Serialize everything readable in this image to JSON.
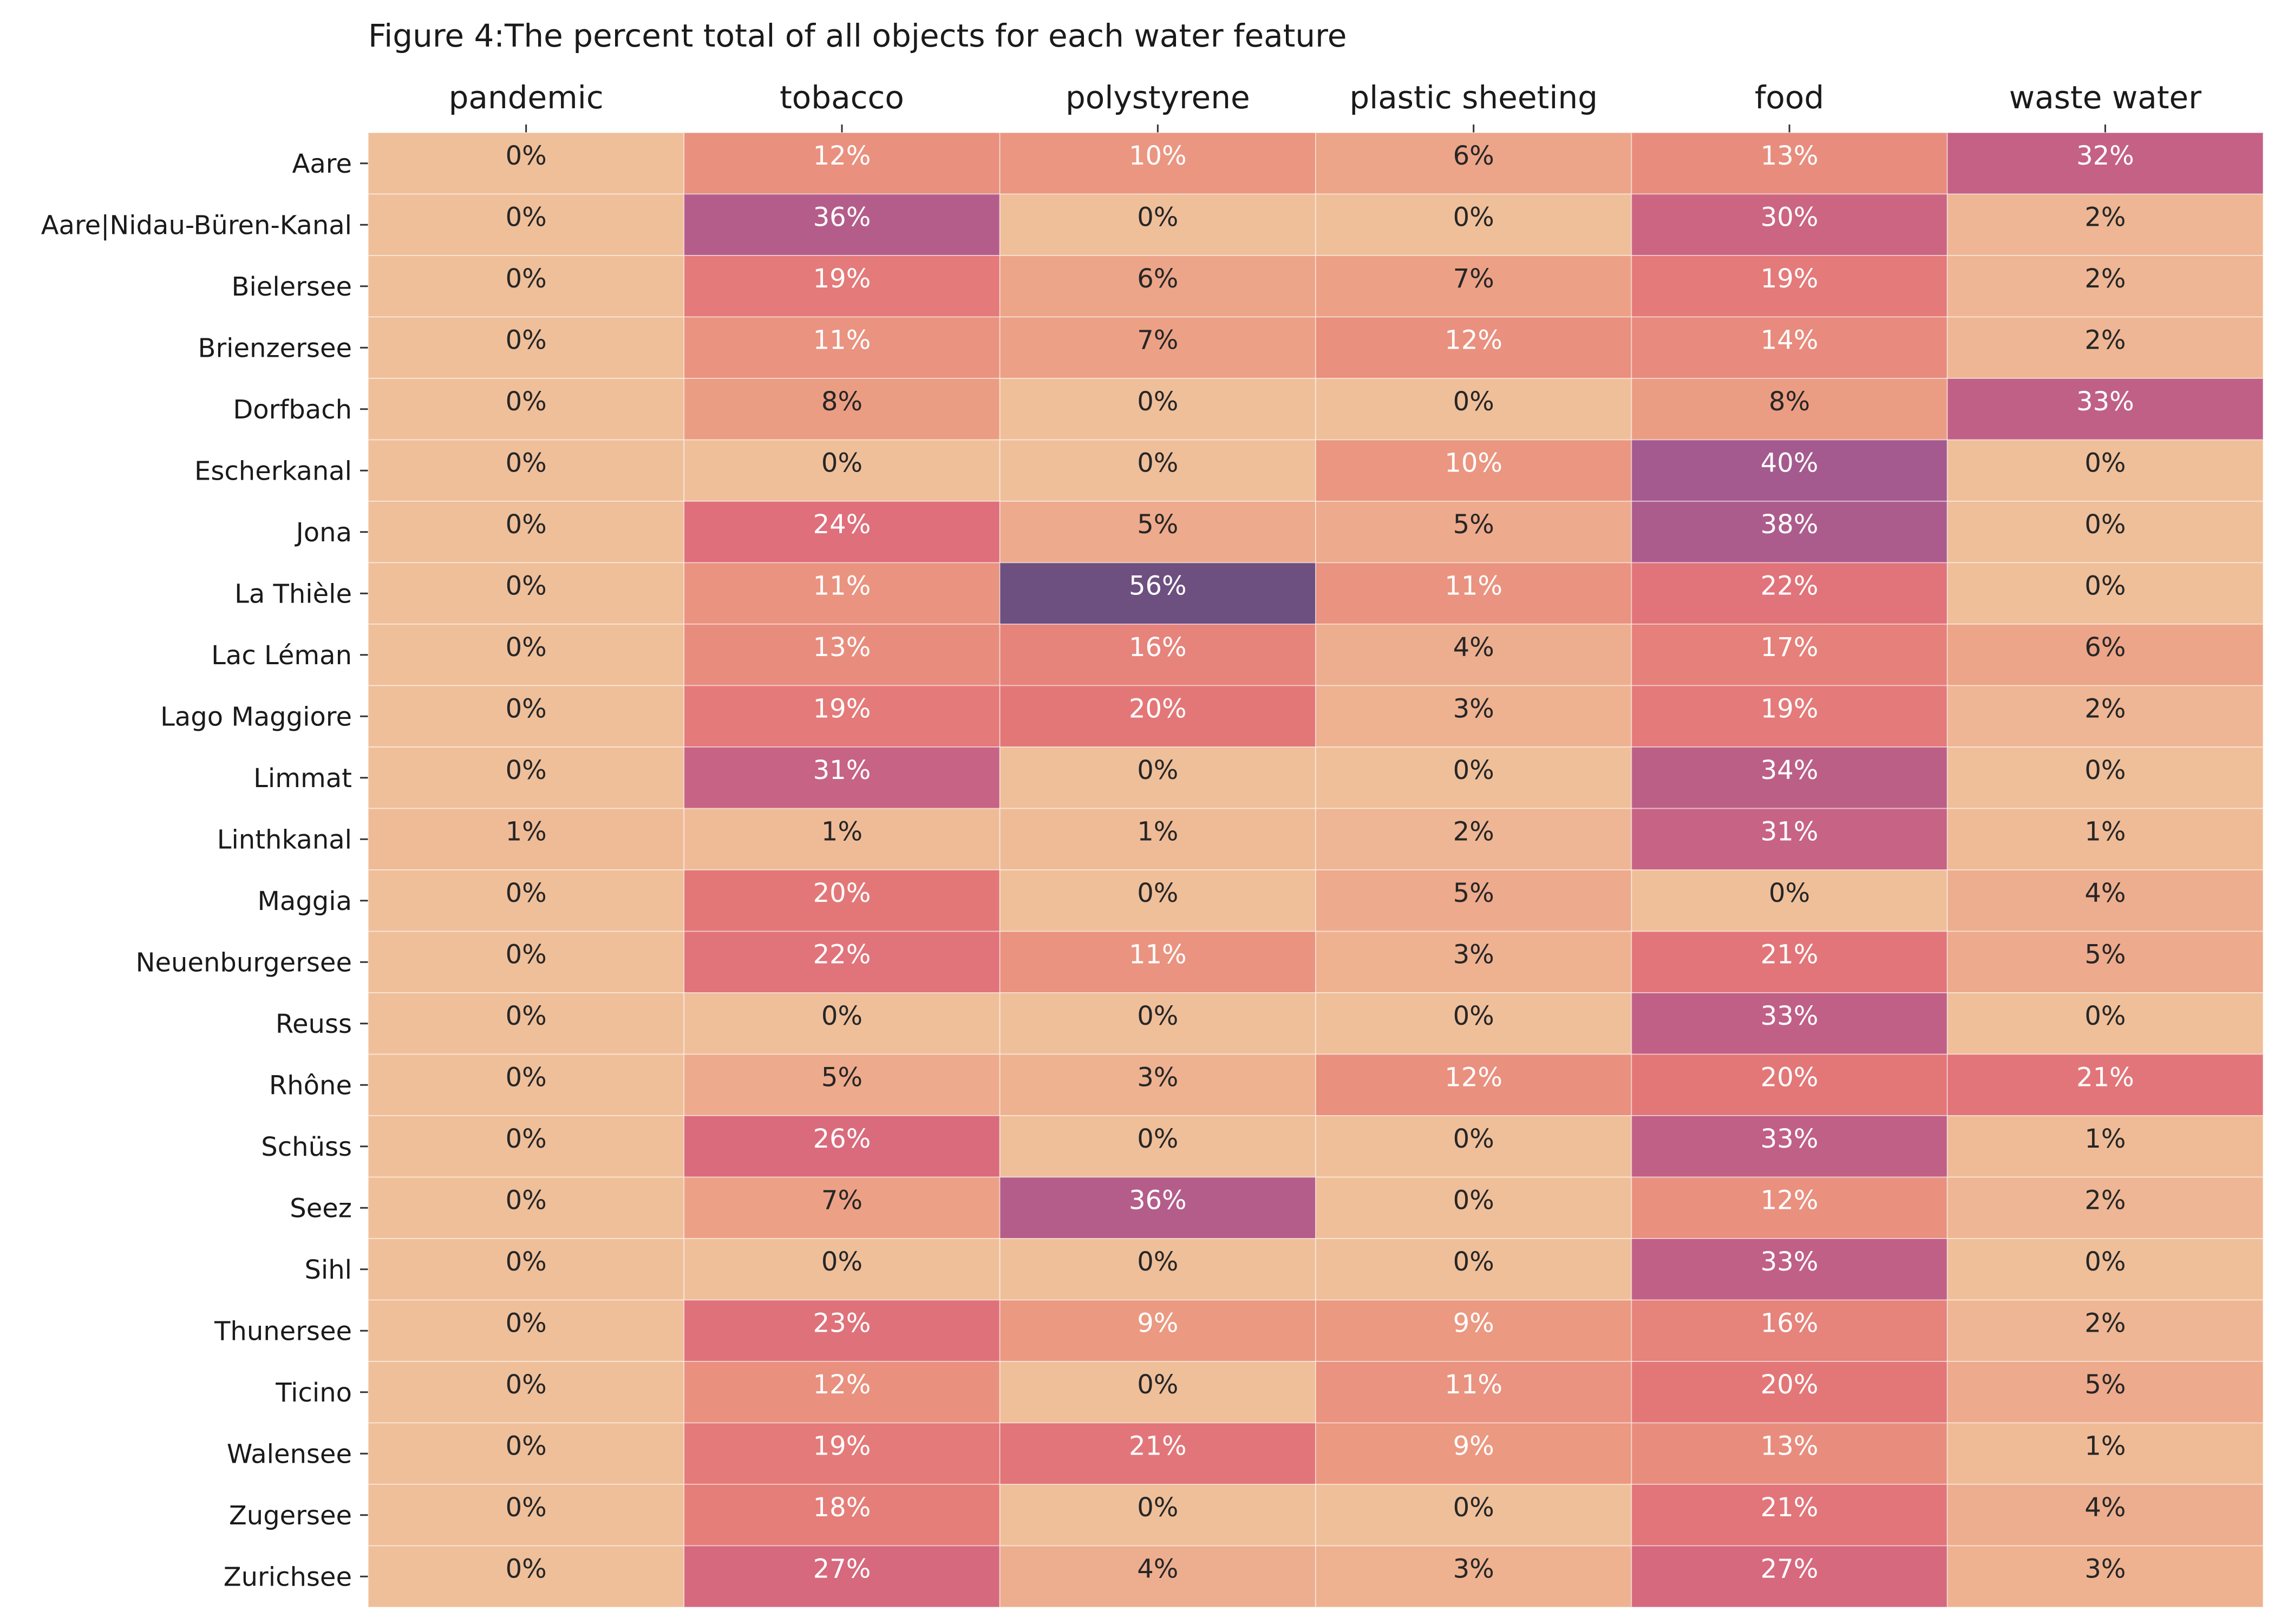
{
  "chart_data": {
    "type": "heatmap",
    "title": "Figure 4:The percent total of all objects for each water feature",
    "columns": [
      "pandemic",
      "tobacco",
      "polystyrene",
      "plastic sheeting",
      "food",
      "waste water"
    ],
    "rows": [
      "Aare",
      "Aare|Nidau-Büren-Kanal",
      "Bielersee",
      "Brienzersee",
      "Dorfbach",
      "Escherkanal",
      "Jona",
      "La Thièle",
      "Lac Léman",
      "Lago Maggiore",
      "Limmat",
      "Linthkanal",
      "Maggia",
      "Neuenburgersee",
      "Reuss",
      "Rhône",
      "Schüss",
      "Seez",
      "Sihl",
      "Thunersee",
      "Ticino",
      "Walensee",
      "Zugersee",
      "Zurichsee"
    ],
    "values": [
      [
        0,
        12,
        10,
        6,
        13,
        32
      ],
      [
        0,
        36,
        0,
        0,
        30,
        2
      ],
      [
        0,
        19,
        6,
        7,
        19,
        2
      ],
      [
        0,
        11,
        7,
        12,
        14,
        2
      ],
      [
        0,
        8,
        0,
        0,
        8,
        33
      ],
      [
        0,
        0,
        0,
        10,
        40,
        0
      ],
      [
        0,
        24,
        5,
        5,
        38,
        0
      ],
      [
        0,
        11,
        56,
        11,
        22,
        0
      ],
      [
        0,
        13,
        16,
        4,
        17,
        6
      ],
      [
        0,
        19,
        20,
        3,
        19,
        2
      ],
      [
        0,
        31,
        0,
        0,
        34,
        0
      ],
      [
        1,
        1,
        1,
        2,
        31,
        1
      ],
      [
        0,
        20,
        0,
        5,
        0,
        4
      ],
      [
        0,
        22,
        11,
        3,
        21,
        5
      ],
      [
        0,
        0,
        0,
        0,
        33,
        0
      ],
      [
        0,
        5,
        3,
        12,
        20,
        21
      ],
      [
        0,
        26,
        0,
        0,
        33,
        1
      ],
      [
        0,
        7,
        36,
        0,
        12,
        2
      ],
      [
        0,
        0,
        0,
        0,
        33,
        0
      ],
      [
        0,
        23,
        9,
        9,
        16,
        2
      ],
      [
        0,
        12,
        0,
        11,
        20,
        5
      ],
      [
        0,
        19,
        21,
        9,
        13,
        1
      ],
      [
        0,
        18,
        0,
        0,
        21,
        4
      ],
      [
        0,
        27,
        4,
        3,
        27,
        3
      ]
    ],
    "value_suffix": "%",
    "colormap": "flare",
    "colorbar": false
  }
}
